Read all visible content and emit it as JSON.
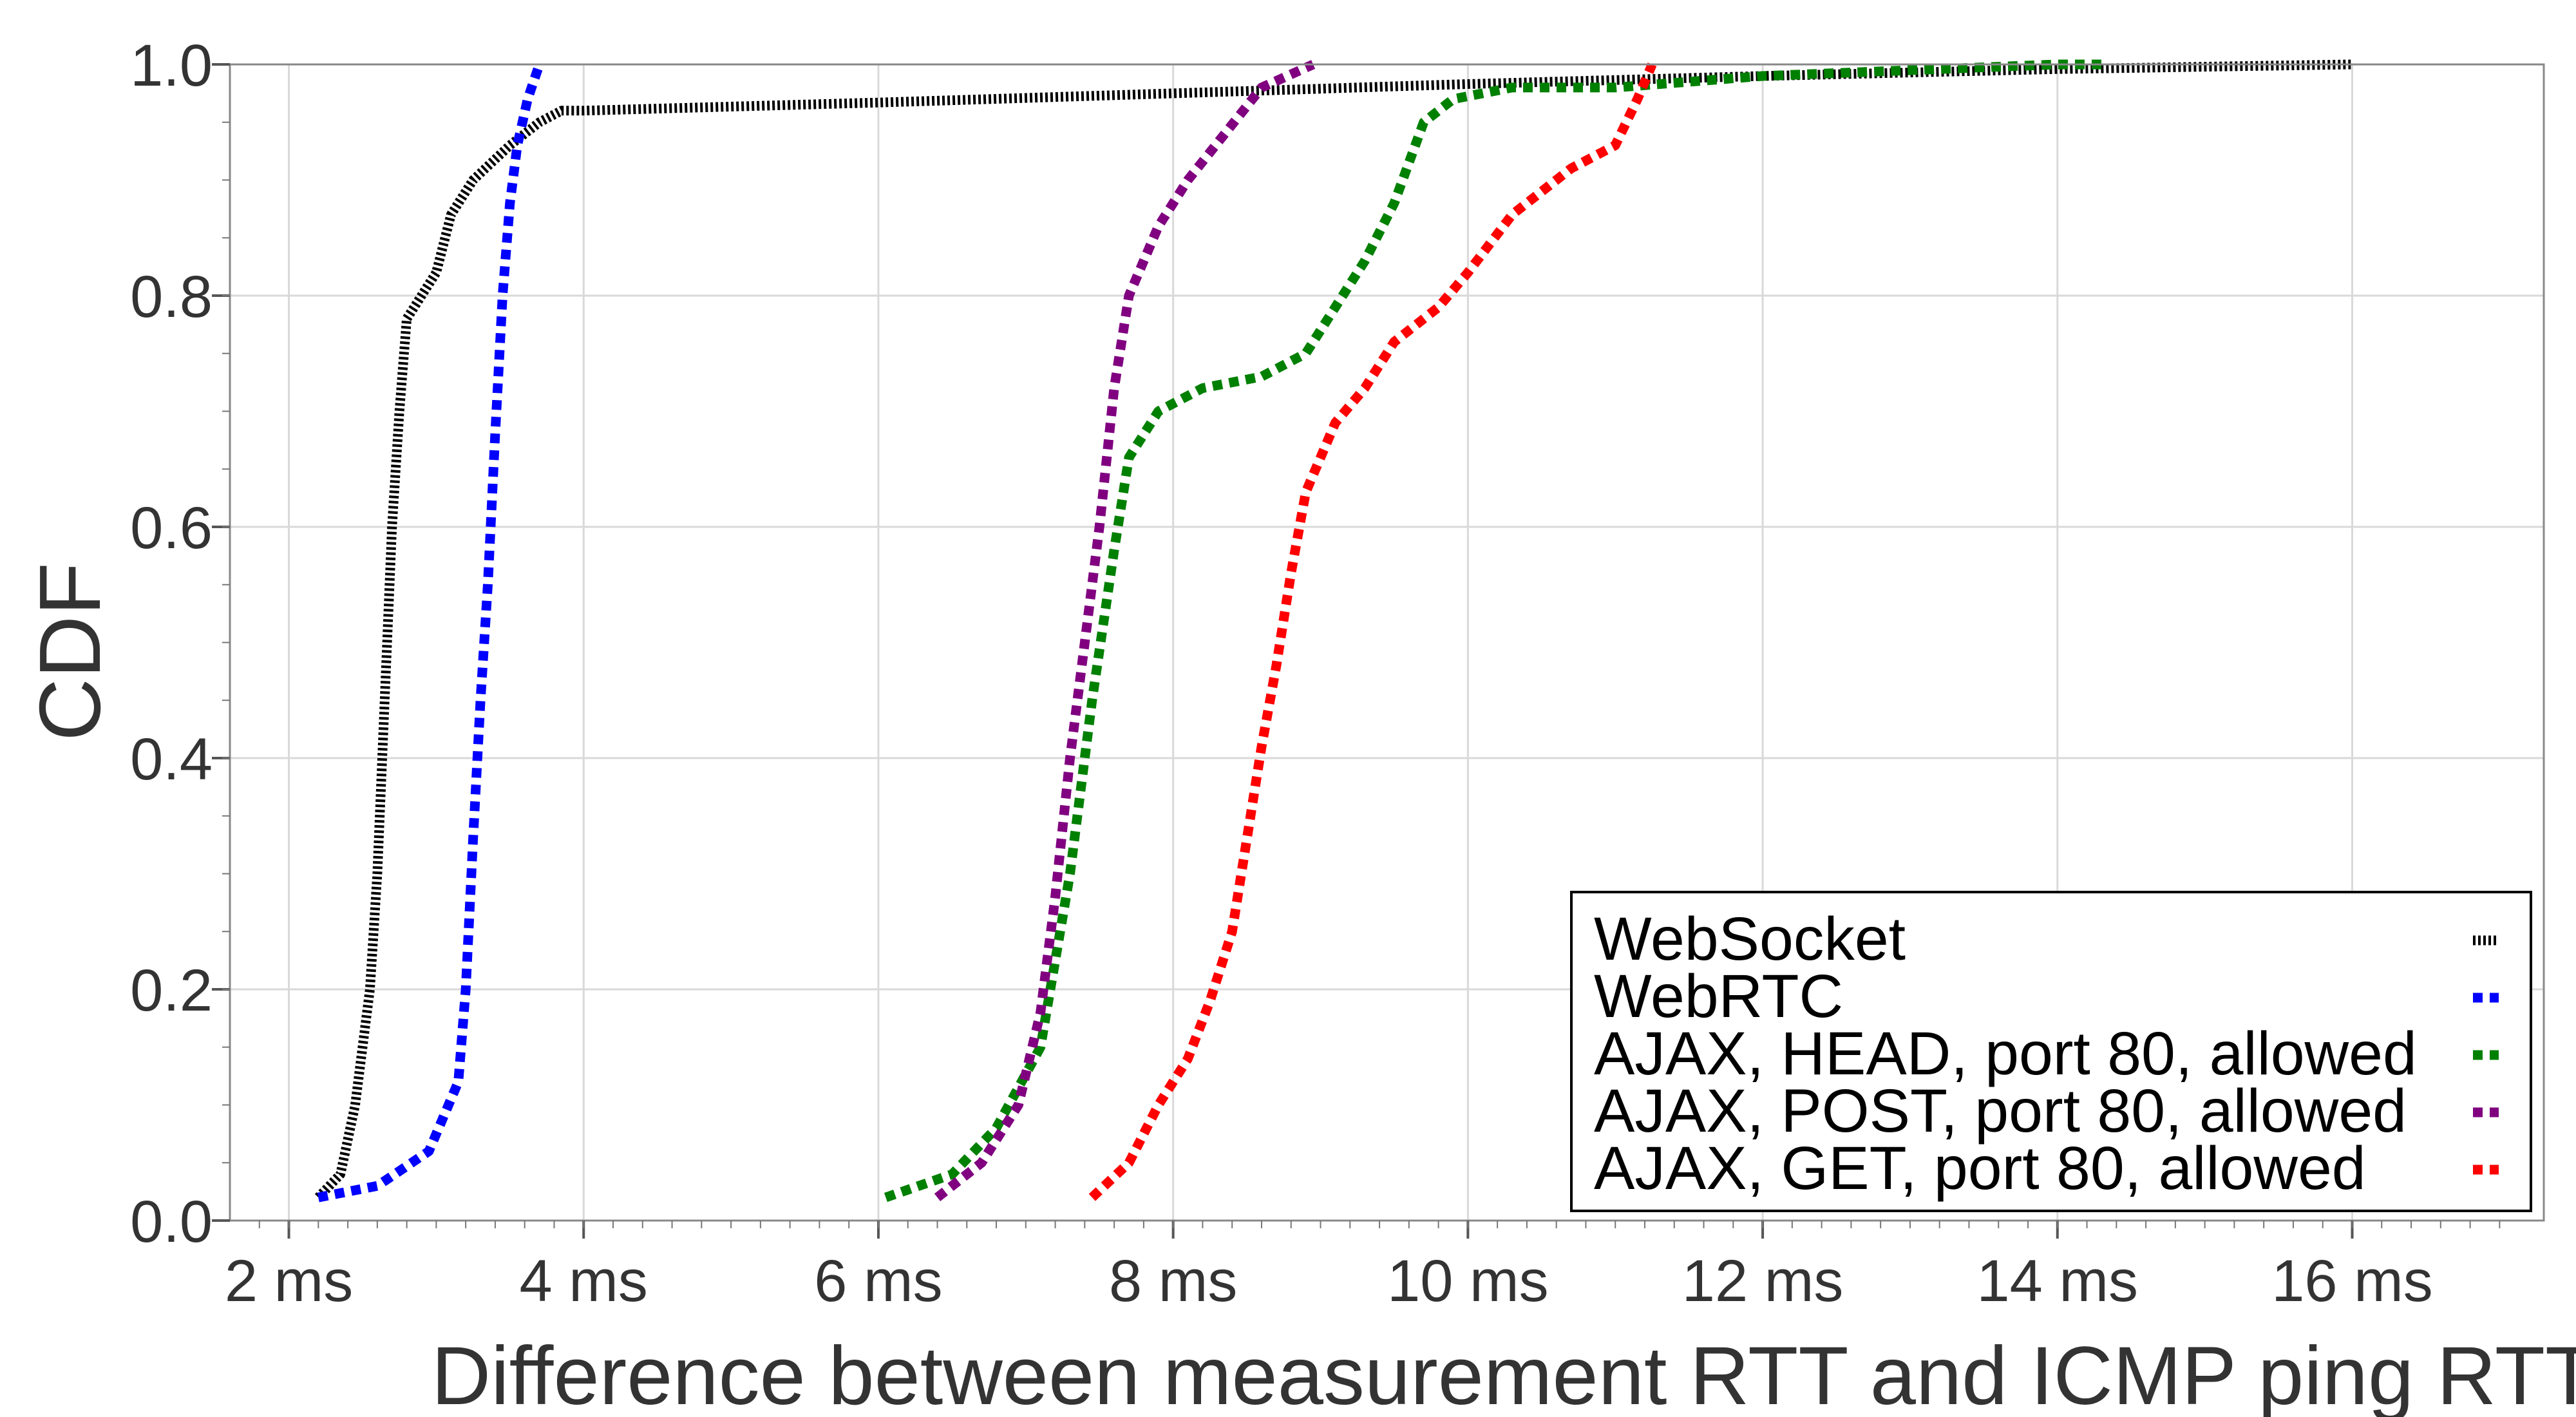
{
  "chart_data": {
    "type": "line",
    "xlabel": "Difference between measurement RTT and ICMP ping RTT",
    "ylabel": "CDF",
    "xlim": [
      1.6,
      17.3
    ],
    "ylim": [
      0,
      1
    ],
    "x_ticks": [
      {
        "value": 2,
        "label": "2 ms"
      },
      {
        "value": 4,
        "label": "4 ms"
      },
      {
        "value": 6,
        "label": "6 ms"
      },
      {
        "value": 8,
        "label": "8 ms"
      },
      {
        "value": 10,
        "label": "10 ms"
      },
      {
        "value": 12,
        "label": "12 ms"
      },
      {
        "value": 14,
        "label": "14 ms"
      },
      {
        "value": 16,
        "label": "16 ms"
      }
    ],
    "y_ticks": [
      {
        "value": 0.0,
        "label": "0.0"
      },
      {
        "value": 0.2,
        "label": "0.2"
      },
      {
        "value": 0.4,
        "label": "0.4"
      },
      {
        "value": 0.6,
        "label": "0.6"
      },
      {
        "value": 0.8,
        "label": "0.8"
      },
      {
        "value": 1.0,
        "label": "1.0"
      }
    ],
    "grid": true,
    "legend_position": "bottom-right",
    "series": [
      {
        "name": "WebSocket",
        "color": "#000000",
        "dash": "hatched",
        "x": [
          2.2,
          2.35,
          2.45,
          2.55,
          2.6,
          2.65,
          2.7,
          2.75,
          2.8,
          2.85,
          3.0,
          3.1,
          3.25,
          3.5,
          3.7,
          3.85,
          4.0,
          6.0,
          8.0,
          10.0,
          12.0,
          14.0,
          16.0
        ],
        "y": [
          0.02,
          0.04,
          0.1,
          0.2,
          0.3,
          0.45,
          0.6,
          0.7,
          0.78,
          0.79,
          0.82,
          0.87,
          0.9,
          0.93,
          0.95,
          0.96,
          0.96,
          0.967,
          0.975,
          0.983,
          0.99,
          0.996,
          1.0
        ]
      },
      {
        "name": "WebRTC",
        "color": "#0000ff",
        "dash": "dotted",
        "x": [
          2.2,
          2.6,
          2.95,
          3.15,
          3.2,
          3.25,
          3.3,
          3.35,
          3.4,
          3.45,
          3.5,
          3.55,
          3.62,
          3.7
        ],
        "y": [
          0.02,
          0.03,
          0.06,
          0.12,
          0.2,
          0.33,
          0.45,
          0.55,
          0.68,
          0.8,
          0.88,
          0.93,
          0.97,
          1.0
        ]
      },
      {
        "name": "AJAX, HEAD, port 80, allowed",
        "color": "#008000",
        "dash": "dotted",
        "x": [
          6.05,
          6.5,
          6.8,
          7.1,
          7.3,
          7.45,
          7.6,
          7.7,
          7.9,
          8.2,
          8.6,
          8.9,
          9.1,
          9.3,
          9.5,
          9.7,
          9.9,
          10.3,
          11.0,
          12.0,
          14.0,
          14.3
        ],
        "y": [
          0.02,
          0.04,
          0.08,
          0.15,
          0.3,
          0.45,
          0.58,
          0.66,
          0.7,
          0.72,
          0.73,
          0.75,
          0.79,
          0.83,
          0.88,
          0.95,
          0.97,
          0.98,
          0.98,
          0.99,
          1.0,
          1.0
        ]
      },
      {
        "name": "AJAX, POST, port 80, allowed",
        "color": "#800080",
        "dash": "dotted",
        "x": [
          6.4,
          6.7,
          6.95,
          7.1,
          7.2,
          7.3,
          7.4,
          7.5,
          7.6,
          7.7,
          7.9,
          8.1,
          8.35,
          8.6,
          8.95
        ],
        "y": [
          0.02,
          0.05,
          0.1,
          0.18,
          0.28,
          0.4,
          0.5,
          0.6,
          0.72,
          0.8,
          0.86,
          0.9,
          0.94,
          0.98,
          1.0
        ]
      },
      {
        "name": "AJAX, GET, port 80, allowed",
        "color": "#ff0000",
        "dash": "dotted",
        "x": [
          7.45,
          7.7,
          7.9,
          8.1,
          8.25,
          8.4,
          8.5,
          8.6,
          8.7,
          8.8,
          8.9,
          9.1,
          9.3,
          9.5,
          9.8,
          10.0,
          10.3,
          10.7,
          11.0,
          11.15,
          11.25
        ],
        "y": [
          0.02,
          0.05,
          0.1,
          0.14,
          0.19,
          0.25,
          0.33,
          0.41,
          0.48,
          0.56,
          0.63,
          0.69,
          0.72,
          0.76,
          0.79,
          0.82,
          0.87,
          0.91,
          0.93,
          0.97,
          1.0
        ]
      }
    ]
  }
}
